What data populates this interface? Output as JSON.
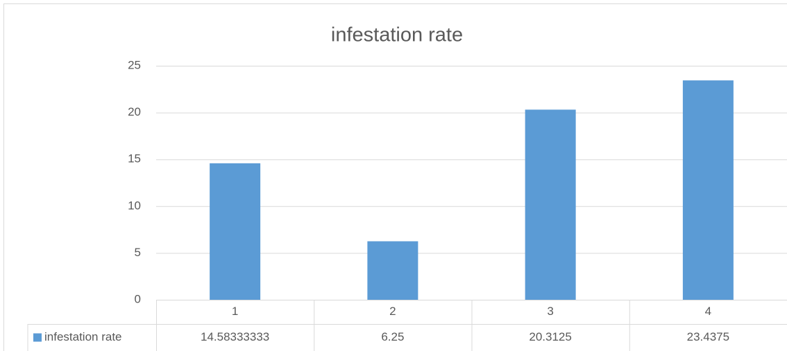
{
  "chart_data": {
    "type": "bar",
    "title": "infestation rate",
    "categories": [
      "1",
      "2",
      "3",
      "4"
    ],
    "series": [
      {
        "name": "infestation rate",
        "color": "#5b9bd5",
        "values": [
          14.58333333,
          6.25,
          20.3125,
          23.4375
        ]
      }
    ],
    "ylim": [
      0,
      25
    ],
    "yticks": [
      0,
      5,
      10,
      15,
      20,
      25
    ],
    "grid": true
  }
}
